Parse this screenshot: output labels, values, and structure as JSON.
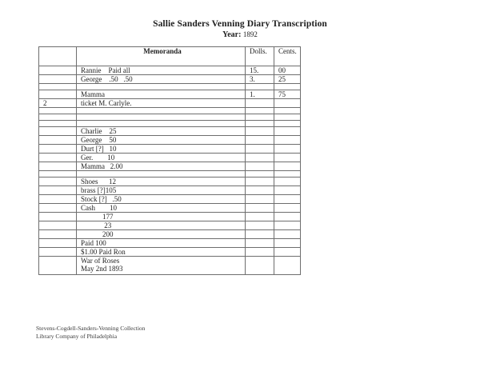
{
  "title": "Sallie Sanders Venning Diary Transcription",
  "year": {
    "label": "Year:",
    "value": "1892"
  },
  "table": {
    "headers": {
      "col0": "",
      "memo": "Memoranda",
      "dolls": "Dolls.",
      "cents": "Cents."
    },
    "rows": [
      {
        "c0": "",
        "memo": [
          {
            "t": "Rannie    Paid all"
          }
        ],
        "dolls": "15.",
        "cents": "00"
      },
      {
        "c0": "",
        "memo": [
          {
            "t": "George    .50   .50"
          }
        ],
        "dolls": "3.",
        "cents": "25"
      },
      {
        "blank": true
      },
      {
        "c0": "",
        "memo": [
          {
            "t": "Mamma"
          }
        ],
        "dolls": "1.",
        "cents": "75"
      },
      {
        "c0": "2",
        "memo": [
          {
            "t": "ticket M. Carlyle."
          }
        ],
        "dolls": "",
        "cents": ""
      },
      {
        "blank": true
      },
      {
        "blank": true
      },
      {
        "blank": true
      },
      {
        "c0": "",
        "memo": [
          {
            "t": "Charlie    25"
          }
        ],
        "dolls": "",
        "cents": ""
      },
      {
        "c0": "",
        "memo": [
          {
            "t": "George    50"
          }
        ],
        "dolls": "",
        "cents": ""
      },
      {
        "c0": "",
        "memo": [
          {
            "t": "Durt [?]   10"
          }
        ],
        "dolls": "",
        "cents": ""
      },
      {
        "c0": "",
        "memo": [
          {
            "t": "Ger.        10"
          }
        ],
        "dolls": "",
        "cents": ""
      },
      {
        "c0": "",
        "memo": [
          {
            "t": "Mamma   2.00"
          }
        ],
        "dolls": "",
        "cents": ""
      },
      {
        "blank": true
      },
      {
        "c0": "",
        "memo": [
          {
            "t": "Shoes      12"
          }
        ],
        "dolls": "",
        "cents": ""
      },
      {
        "c0": "",
        "memo": [
          {
            "t": "brass [?]105"
          }
        ],
        "dolls": "",
        "cents": ""
      },
      {
        "c0": "",
        "memo": [
          {
            "t": "Stock [?]   .50"
          }
        ],
        "dolls": "",
        "cents": ""
      },
      {
        "c0": "",
        "memo": [
          {
            "t": "Cash        "
          },
          {
            "t": "10",
            "u": true
          }
        ],
        "dolls": "",
        "cents": ""
      },
      {
        "c0": "",
        "memo": [
          {
            "t": "            177"
          }
        ],
        "dolls": "",
        "cents": ""
      },
      {
        "c0": "",
        "memo": [
          {
            "t": "             23",
            "u": true
          }
        ],
        "dolls": "",
        "cents": ""
      },
      {
        "c0": "",
        "memo": [
          {
            "t": "            200"
          }
        ],
        "dolls": "",
        "cents": ""
      },
      {
        "c0": "",
        "memo": [
          {
            "t": "Paid 100"
          }
        ],
        "dolls": "",
        "cents": ""
      },
      {
        "c0": "",
        "memo": [
          {
            "t": "$1.00 Paid Ron"
          }
        ],
        "dolls": "",
        "cents": ""
      },
      {
        "c0": "",
        "memo": [
          {
            "t": "War of Roses\nMay 2nd 1893"
          }
        ],
        "dolls": "",
        "cents": "",
        "tall": true
      }
    ]
  },
  "footer": {
    "line1": "Stevens-Cogdell-Sanders-Venning Collection",
    "line2": "Library Company of Philadelphia"
  }
}
